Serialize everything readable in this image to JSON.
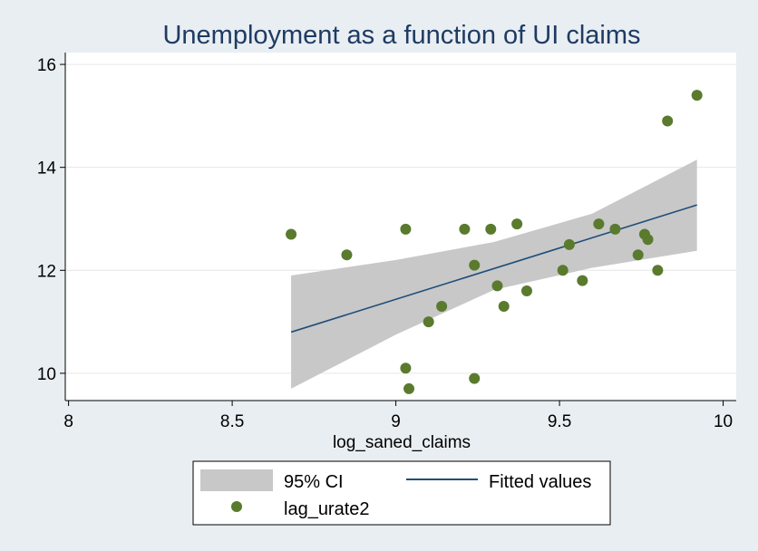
{
  "chart_data": {
    "type": "scatter",
    "title": "Unemployment as a function of UI claims",
    "xlabel": "log_saned_claims",
    "ylabel": "",
    "xlim": [
      7.99,
      10.04
    ],
    "ylim": [
      9.47,
      16.23
    ],
    "x_ticks": [
      8,
      8.5,
      9,
      9.5,
      10
    ],
    "x_tick_labels": [
      "8",
      "8.5",
      "9",
      "9.5",
      "10"
    ],
    "y_ticks": [
      10,
      12,
      14,
      16
    ],
    "y_tick_labels": [
      "10",
      "12",
      "14",
      "16"
    ],
    "grid": "horizontal",
    "legend_position": "bottom",
    "colors": {
      "points": "#5a7a2e",
      "fit_line": "#1f4e79",
      "ci_band": "#c8c8c8",
      "plot_bg": "#ffffff",
      "outer_bg": "#e8eef2",
      "title": "#1f3b63"
    },
    "series": [
      {
        "name": "lag_urate2",
        "type": "scatter",
        "points": [
          [
            8.68,
            12.7
          ],
          [
            8.85,
            12.3
          ],
          [
            9.03,
            12.8
          ],
          [
            9.03,
            10.1
          ],
          [
            9.04,
            9.7
          ],
          [
            9.1,
            11.0
          ],
          [
            9.14,
            11.3
          ],
          [
            9.21,
            12.8
          ],
          [
            9.24,
            12.1
          ],
          [
            9.24,
            9.9
          ],
          [
            9.29,
            12.8
          ],
          [
            9.31,
            11.7
          ],
          [
            9.33,
            11.3
          ],
          [
            9.37,
            12.9
          ],
          [
            9.4,
            11.6
          ],
          [
            9.51,
            12.0
          ],
          [
            9.53,
            12.5
          ],
          [
            9.57,
            11.8
          ],
          [
            9.62,
            12.9
          ],
          [
            9.67,
            12.8
          ],
          [
            9.74,
            12.3
          ],
          [
            9.76,
            12.7
          ],
          [
            9.77,
            12.6
          ],
          [
            9.8,
            12.0
          ],
          [
            9.83,
            14.9
          ],
          [
            9.92,
            15.4
          ]
        ]
      },
      {
        "name": "Fitted values",
        "type": "line",
        "points": [
          [
            8.68,
            10.8
          ],
          [
            9.92,
            13.27
          ]
        ]
      },
      {
        "name": "95% CI",
        "type": "band",
        "x": [
          8.68,
          9.0,
          9.3,
          9.6,
          9.92
        ],
        "lower": [
          9.7,
          10.75,
          11.62,
          12.05,
          12.38
        ],
        "upper": [
          11.9,
          12.2,
          12.55,
          13.1,
          14.15
        ]
      }
    ]
  },
  "legend": {
    "ci_label": "95% CI",
    "fit_label": "Fitted values",
    "points_label": "lag_urate2"
  }
}
